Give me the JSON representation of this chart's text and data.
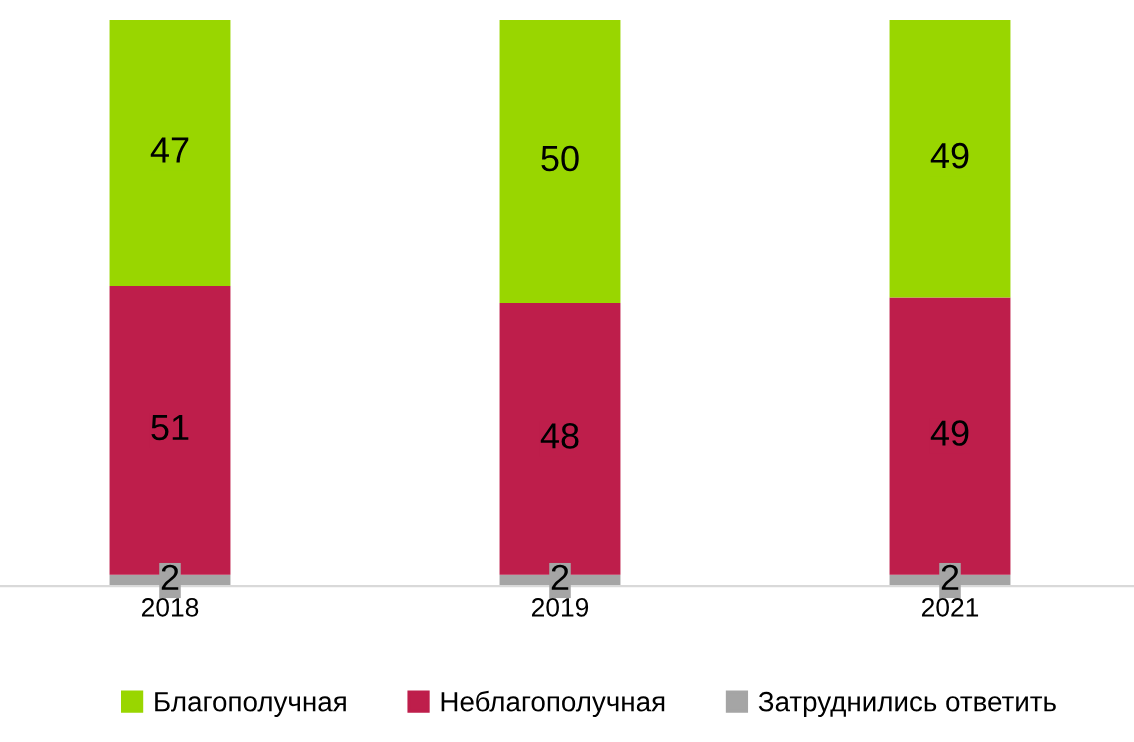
{
  "chart_data": {
    "type": "bar",
    "stacked": true,
    "data_labels": true,
    "legend": "bottom",
    "grid": false,
    "categories": [
      "2018",
      "2019",
      "2021"
    ],
    "series": [
      {
        "name": "Затруднились ответить",
        "color": "#a5a5a5",
        "values": [
          2,
          2,
          2
        ]
      },
      {
        "name": "Неблагополучная",
        "color": "#be1e4b",
        "values": [
          51,
          48,
          49
        ]
      },
      {
        "name": "Благополучная",
        "color": "#99d600",
        "values": [
          47,
          50,
          49
        ]
      }
    ],
    "ylim": [
      0,
      100
    ],
    "tick_labels": "x"
  }
}
